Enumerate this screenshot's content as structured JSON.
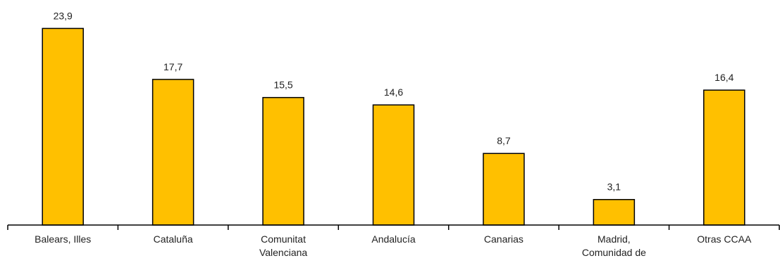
{
  "chart_data": {
    "type": "bar",
    "categories": [
      [
        "Balears, Illes"
      ],
      [
        "Cataluña"
      ],
      [
        "Comunitat",
        "Valenciana"
      ],
      [
        "Andalucía"
      ],
      [
        "Canarias"
      ],
      [
        "Madrid,",
        "Comunidad de"
      ],
      [
        "Otras CCAA"
      ]
    ],
    "values": [
      23.9,
      17.7,
      15.5,
      14.6,
      8.7,
      3.1,
      16.4
    ],
    "value_labels": [
      "23,9",
      "17,7",
      "15,5",
      "14,6",
      "8,7",
      "3,1",
      "16,4"
    ],
    "ylim": [
      0,
      26.5
    ],
    "grid": false,
    "legend": "none",
    "colors": {
      "bar_fill": "#FFC000",
      "bar_stroke": "#000000",
      "axis": "#000000",
      "text": "#222222"
    }
  }
}
